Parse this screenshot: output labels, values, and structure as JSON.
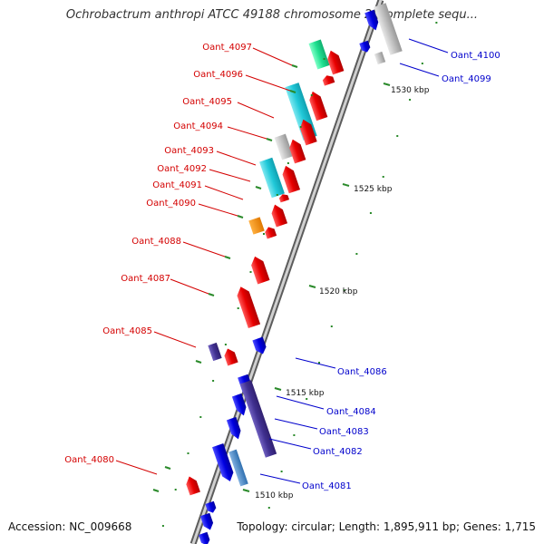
{
  "title": "Ochrobactrum anthropi ATCC 49188 chromosome 2, complete sequ...",
  "footer": {
    "accession": "Accession: NC_009668",
    "summary": "Topology: circular; Length: 1,895,911 bp; Genes: 1,715"
  },
  "colors": {
    "left_label": "#d40000",
    "right_label": "#0000cc",
    "backbone": "#8c8c8c",
    "tick": "#2a8a2a"
  },
  "scale_ticks": [
    {
      "label": "1530 kbp"
    },
    {
      "label": "1525 kbp"
    },
    {
      "label": "1520 kbp"
    },
    {
      "label": "1515 kbp"
    },
    {
      "label": "1510 kbp"
    }
  ],
  "left_labels": [
    {
      "name": "Oant_4097"
    },
    {
      "name": "Oant_4096"
    },
    {
      "name": "Oant_4095"
    },
    {
      "name": "Oant_4094"
    },
    {
      "name": "Oant_4093"
    },
    {
      "name": "Oant_4092"
    },
    {
      "name": "Oant_4091"
    },
    {
      "name": "Oant_4090"
    },
    {
      "name": "Oant_4088"
    },
    {
      "name": "Oant_4087"
    },
    {
      "name": "Oant_4085"
    },
    {
      "name": "Oant_4080"
    }
  ],
  "right_labels": [
    {
      "name": "Oant_4100"
    },
    {
      "name": "Oant_4099"
    },
    {
      "name": "Oant_4086"
    },
    {
      "name": "Oant_4084"
    },
    {
      "name": "Oant_4083"
    },
    {
      "name": "Oant_4082"
    },
    {
      "name": "Oant_4081"
    }
  ]
}
